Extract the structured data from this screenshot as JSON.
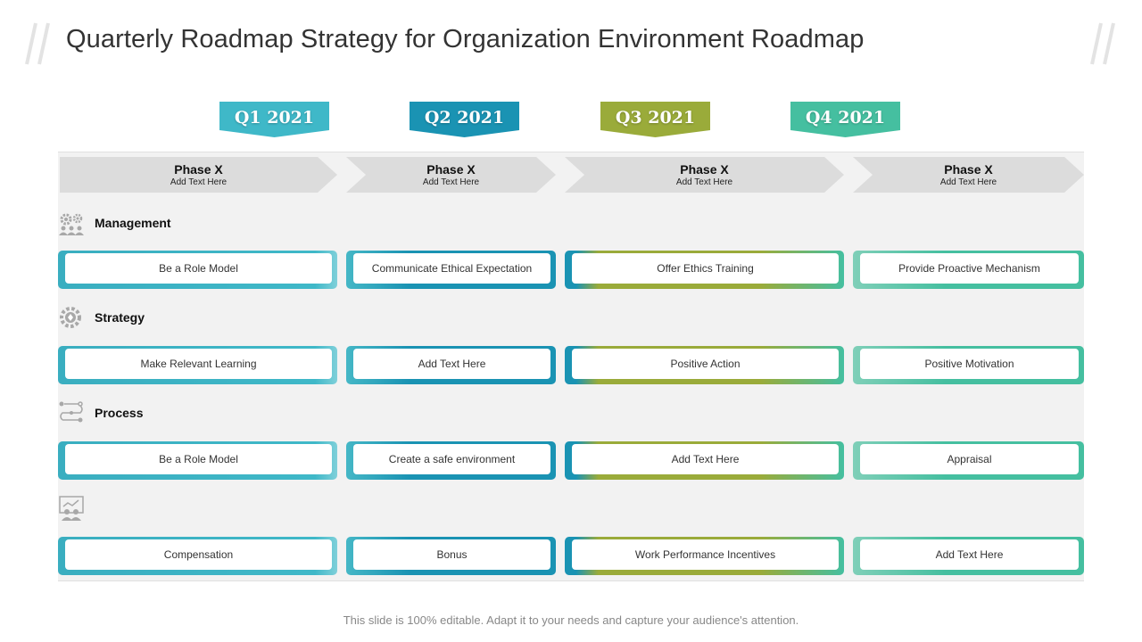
{
  "title": "Quarterly Roadmap Strategy for Organization Environment Roadmap",
  "quarters": [
    {
      "label": "Q1 2021",
      "color": "#3fb8c8"
    },
    {
      "label": "Q2 2021",
      "color": "#1a93b3"
    },
    {
      "label": "Q3 2021",
      "color": "#9aab3a"
    },
    {
      "label": "Q4 2021",
      "color": "#45bfa0"
    }
  ],
  "phases": [
    {
      "title": "Phase X",
      "sub": "Add Text Here"
    },
    {
      "title": "Phase X",
      "sub": "Add Text Here"
    },
    {
      "title": "Phase X",
      "sub": "Add Text Here"
    },
    {
      "title": "Phase X",
      "sub": "Add Text Here"
    }
  ],
  "categories": [
    {
      "label": "Management",
      "icon": "gears-people-icon"
    },
    {
      "label": "Strategy",
      "icon": "gear-strategy-icon"
    },
    {
      "label": "Process",
      "icon": "process-flow-icon"
    },
    {
      "label": "",
      "icon": "presentation-team-icon"
    }
  ],
  "rows": [
    [
      "Be a Role Model",
      "Communicate Ethical Expectation",
      "Offer  Ethics Training",
      "Provide Proactive Mechanism"
    ],
    [
      "Make Relevant  Learning",
      "Add Text Here",
      "Positive Action",
      "Positive Motivation"
    ],
    [
      "Be a Role Model",
      "Create  a safe environment",
      "Add Text Here",
      "Appraisal"
    ],
    [
      "Compensation",
      "Bonus",
      "Work Performance  Incentives",
      "Add Text Here"
    ]
  ],
  "footer": "This slide is 100% editable. Adapt it to your needs and capture your audience's attention."
}
